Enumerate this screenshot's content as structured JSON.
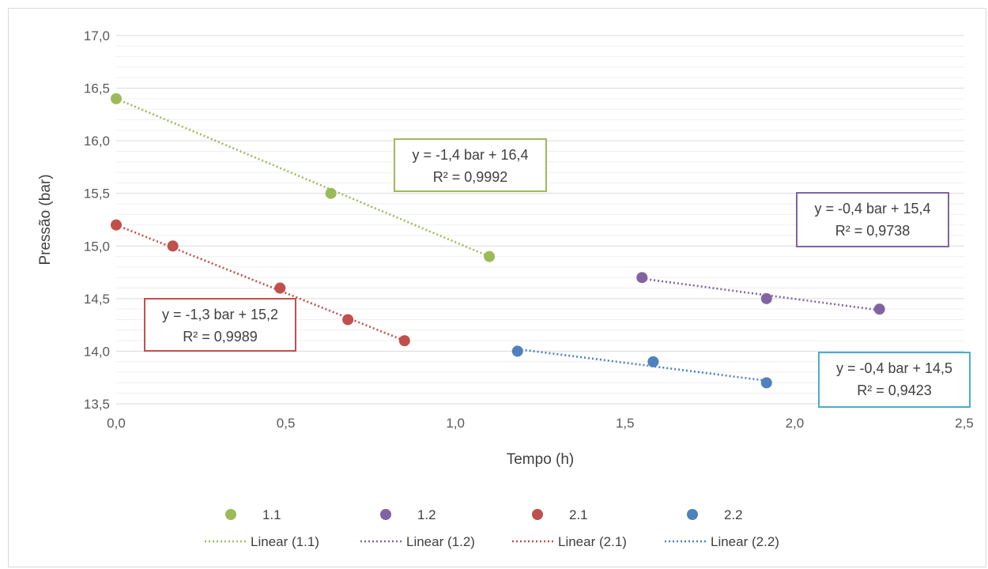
{
  "chart_data": {
    "type": "scatter",
    "xlabel": "Tempo (h)",
    "ylabel": "Pressão (bar)",
    "xlim": [
      0,
      2.5
    ],
    "ylim": [
      13.5,
      17.0
    ],
    "x_ticks": [
      "0,0",
      "0,5",
      "1,0",
      "1,5",
      "2,0",
      "2,5"
    ],
    "y_ticks": [
      "13,5",
      "14,0",
      "14,5",
      "15,0",
      "15,5",
      "16,0",
      "16,5",
      "17,0"
    ],
    "grid": true,
    "legend_position": "bottom",
    "series": [
      {
        "name": "1.1",
        "color": "#9bbb59",
        "points": [
          [
            0.0,
            16.4
          ],
          [
            0.633,
            15.5
          ],
          [
            1.1,
            14.9
          ]
        ],
        "trendline": {
          "name": "Linear (1.1)",
          "x": [
            0.0,
            1.1
          ],
          "y": [
            16.4,
            14.9
          ]
        },
        "equation": "y = -1,4 bar + 16,4",
        "r2": "R² = 0,9992"
      },
      {
        "name": "1.2",
        "color": "#8064a2",
        "points": [
          [
            1.55,
            14.7
          ],
          [
            1.917,
            14.5
          ],
          [
            2.25,
            14.4
          ]
        ],
        "trendline": {
          "name": "Linear (1.2)",
          "x": [
            1.55,
            2.25
          ],
          "y": [
            14.69,
            14.39
          ]
        },
        "equation": "y = -0,4 bar + 15,4",
        "r2": "R² = 0,9738"
      },
      {
        "name": "2.1",
        "color": "#c0504d",
        "points": [
          [
            0.0,
            15.2
          ],
          [
            0.167,
            15.0
          ],
          [
            0.483,
            14.6
          ],
          [
            0.683,
            14.3
          ],
          [
            0.85,
            14.1
          ]
        ],
        "trendline": {
          "name": "Linear (2.1)",
          "x": [
            0.0,
            0.85
          ],
          "y": [
            15.2,
            14.1
          ]
        },
        "equation": "y = -1,3 bar + 15,2",
        "r2": "R² = 0,9989"
      },
      {
        "name": "2.2",
        "color": "#4f81bd",
        "points": [
          [
            1.183,
            14.0
          ],
          [
            1.583,
            13.9
          ],
          [
            1.917,
            13.7
          ]
        ],
        "trendline": {
          "name": "Linear (2.2)",
          "x": [
            1.183,
            1.917
          ],
          "y": [
            14.02,
            13.72
          ]
        },
        "equation": "y = -0,4 bar + 14,5",
        "r2": "R² = 0,9423"
      }
    ],
    "equation_box_colors": [
      "#9bbb59",
      "#8064a2",
      "#c0504d",
      "#4bacc6"
    ]
  }
}
